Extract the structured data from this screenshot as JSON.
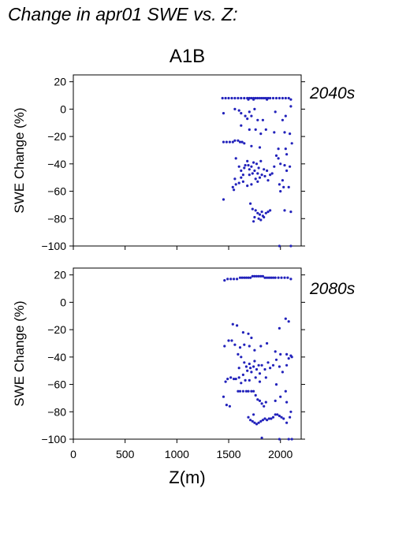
{
  "title": "Change in apr01 SWE vs. Z:",
  "scenario": "A1B",
  "xlabel": "Z(m)",
  "colors": {
    "points": "#2222bb",
    "period_label": "#2222bb",
    "axes": "#000000",
    "background": "#ffffff"
  },
  "chart_data": [
    {
      "type": "scatter",
      "panel_label": "2040s",
      "ylabel": "SWE Change (%)",
      "xlim": [
        0,
        2200
      ],
      "ylim": [
        -100,
        25
      ],
      "xticks": [
        0,
        500,
        1000,
        1500,
        2000
      ],
      "yticks": [
        20,
        0,
        -20,
        -40,
        -60,
        -80,
        -100
      ],
      "show_xtick_labels": false,
      "grid": false,
      "points": [
        [
          1440,
          8
        ],
        [
          1470,
          8
        ],
        [
          1500,
          8
        ],
        [
          1530,
          8
        ],
        [
          1560,
          8
        ],
        [
          1590,
          8
        ],
        [
          1620,
          8
        ],
        [
          1650,
          8
        ],
        [
          1680,
          8
        ],
        [
          1700,
          8
        ],
        [
          1720,
          8
        ],
        [
          1740,
          8
        ],
        [
          1760,
          8
        ],
        [
          1780,
          8
        ],
        [
          1800,
          8
        ],
        [
          1820,
          8
        ],
        [
          1840,
          8
        ],
        [
          1860,
          8
        ],
        [
          1880,
          8
        ],
        [
          1900,
          8
        ],
        [
          1930,
          8
        ],
        [
          1960,
          8
        ],
        [
          1990,
          8
        ],
        [
          2020,
          8
        ],
        [
          2050,
          8
        ],
        [
          2080,
          8
        ],
        [
          2100,
          7
        ],
        [
          1690,
          7
        ],
        [
          1740,
          7
        ],
        [
          1870,
          7
        ],
        [
          1450,
          -3
        ],
        [
          1560,
          0
        ],
        [
          1600,
          -1
        ],
        [
          1620,
          -3
        ],
        [
          1660,
          -5
        ],
        [
          1680,
          -7
        ],
        [
          1700,
          -2
        ],
        [
          1720,
          -5
        ],
        [
          1750,
          0
        ],
        [
          1780,
          -8
        ],
        [
          1830,
          -8
        ],
        [
          1950,
          -2
        ],
        [
          2020,
          -8
        ],
        [
          2050,
          -5
        ],
        [
          2100,
          2
        ],
        [
          1620,
          -12
        ],
        [
          1700,
          -15
        ],
        [
          1760,
          -15
        ],
        [
          1810,
          -18
        ],
        [
          1860,
          -15
        ],
        [
          1940,
          -17
        ],
        [
          2040,
          -17
        ],
        [
          2090,
          -18
        ],
        [
          1450,
          -24
        ],
        [
          1480,
          -24
        ],
        [
          1510,
          -24
        ],
        [
          1540,
          -24
        ],
        [
          1560,
          -23
        ],
        [
          1590,
          -23
        ],
        [
          1610,
          -24
        ],
        [
          1630,
          -24
        ],
        [
          1650,
          -25
        ],
        [
          1720,
          -27
        ],
        [
          1800,
          -28
        ],
        [
          1980,
          -29
        ],
        [
          2050,
          -29
        ],
        [
          2060,
          -33
        ],
        [
          2110,
          -25
        ],
        [
          1570,
          -36
        ],
        [
          1600,
          -42
        ],
        [
          1620,
          -45
        ],
        [
          1640,
          -48
        ],
        [
          1650,
          -43
        ],
        [
          1660,
          -41
        ],
        [
          1680,
          -38
        ],
        [
          1690,
          -41
        ],
        [
          1700,
          -44
        ],
        [
          1720,
          -42
        ],
        [
          1730,
          -47
        ],
        [
          1740,
          -39
        ],
        [
          1750,
          -45
        ],
        [
          1760,
          -51
        ],
        [
          1770,
          -40
        ],
        [
          1780,
          -47
        ],
        [
          1790,
          -43
        ],
        [
          1800,
          -50
        ],
        [
          1810,
          -38
        ],
        [
          1820,
          -48
        ],
        [
          1840,
          -44
        ],
        [
          1850,
          -49
        ],
        [
          1870,
          -45
        ],
        [
          1880,
          -52
        ],
        [
          1900,
          -48
        ],
        [
          1920,
          -47
        ],
        [
          1940,
          -42
        ],
        [
          1960,
          -34
        ],
        [
          1980,
          -36
        ],
        [
          2000,
          -40
        ],
        [
          2020,
          -52
        ],
        [
          2040,
          -41
        ],
        [
          2060,
          -45
        ],
        [
          2090,
          -42
        ],
        [
          1620,
          -50
        ],
        [
          1700,
          -48
        ],
        [
          1560,
          -51
        ],
        [
          1570,
          -55
        ],
        [
          1600,
          -54
        ],
        [
          1640,
          -53
        ],
        [
          1780,
          -53
        ],
        [
          1990,
          -55
        ],
        [
          2030,
          -57
        ],
        [
          2080,
          -57
        ],
        [
          1540,
          -57
        ],
        [
          1550,
          -59
        ],
        [
          1680,
          -56
        ],
        [
          1720,
          -55
        ],
        [
          2000,
          -60
        ],
        [
          1450,
          -66
        ],
        [
          1710,
          -69
        ],
        [
          1730,
          -73
        ],
        [
          1760,
          -74
        ],
        [
          1780,
          -76
        ],
        [
          1800,
          -77
        ],
        [
          1820,
          -75
        ],
        [
          1830,
          -78
        ],
        [
          1840,
          -79
        ],
        [
          1860,
          -76
        ],
        [
          1880,
          -75
        ],
        [
          1900,
          -74
        ],
        [
          1750,
          -79
        ],
        [
          1740,
          -82
        ],
        [
          1790,
          -80
        ],
        [
          1810,
          -81
        ],
        [
          2040,
          -74
        ],
        [
          2100,
          -75
        ],
        [
          1990,
          -100
        ],
        [
          2100,
          -100
        ]
      ]
    },
    {
      "type": "scatter",
      "panel_label": "2080s",
      "ylabel": "SWE Change (%)",
      "xlim": [
        0,
        2200
      ],
      "ylim": [
        -100,
        25
      ],
      "xticks": [
        0,
        500,
        1000,
        1500,
        2000
      ],
      "yticks": [
        20,
        0,
        -20,
        -40,
        -60,
        -80,
        -100
      ],
      "show_xtick_labels": true,
      "grid": false,
      "points": [
        [
          1460,
          16
        ],
        [
          1490,
          17
        ],
        [
          1520,
          17
        ],
        [
          1550,
          17
        ],
        [
          1580,
          17
        ],
        [
          1610,
          18
        ],
        [
          1630,
          18
        ],
        [
          1650,
          18
        ],
        [
          1670,
          18
        ],
        [
          1690,
          18
        ],
        [
          1710,
          18
        ],
        [
          1730,
          19
        ],
        [
          1750,
          19
        ],
        [
          1770,
          19
        ],
        [
          1790,
          19
        ],
        [
          1810,
          19
        ],
        [
          1830,
          19
        ],
        [
          1850,
          18
        ],
        [
          1870,
          18
        ],
        [
          1890,
          18
        ],
        [
          1910,
          18
        ],
        [
          1930,
          18
        ],
        [
          1950,
          18
        ],
        [
          1980,
          18
        ],
        [
          2010,
          18
        ],
        [
          2040,
          18
        ],
        [
          2070,
          18
        ],
        [
          2100,
          17
        ],
        [
          1540,
          -16
        ],
        [
          1580,
          -17
        ],
        [
          1640,
          -22
        ],
        [
          1690,
          -23
        ],
        [
          1720,
          -26
        ],
        [
          1990,
          -19
        ],
        [
          2050,
          -12
        ],
        [
          2080,
          -14
        ],
        [
          1460,
          -32
        ],
        [
          1500,
          -28
        ],
        [
          1530,
          -28
        ],
        [
          1560,
          -31
        ],
        [
          1610,
          -33
        ],
        [
          1650,
          -31
        ],
        [
          1700,
          -32
        ],
        [
          1750,
          -35
        ],
        [
          1810,
          -32
        ],
        [
          1870,
          -30
        ],
        [
          1950,
          -36
        ],
        [
          2000,
          -38
        ],
        [
          2060,
          -38
        ],
        [
          2100,
          -39
        ],
        [
          1590,
          -38
        ],
        [
          1620,
          -40
        ],
        [
          1650,
          -44
        ],
        [
          1670,
          -47
        ],
        [
          1680,
          -50
        ],
        [
          1700,
          -45
        ],
        [
          1710,
          -48
        ],
        [
          1720,
          -51
        ],
        [
          1740,
          -47
        ],
        [
          1750,
          -43
        ],
        [
          1770,
          -49
        ],
        [
          1790,
          -46
        ],
        [
          1800,
          -52
        ],
        [
          1820,
          -46
        ],
        [
          1850,
          -49
        ],
        [
          1880,
          -44
        ],
        [
          1900,
          -48
        ],
        [
          1930,
          -46
        ],
        [
          1960,
          -42
        ],
        [
          1990,
          -47
        ],
        [
          2020,
          -51
        ],
        [
          2060,
          -46
        ],
        [
          2080,
          -41
        ],
        [
          2110,
          -40
        ],
        [
          1600,
          -48
        ],
        [
          1640,
          -53
        ],
        [
          1860,
          -55
        ],
        [
          1470,
          -58
        ],
        [
          1490,
          -56
        ],
        [
          1520,
          -55
        ],
        [
          1550,
          -56
        ],
        [
          1570,
          -56
        ],
        [
          1600,
          -55
        ],
        [
          1620,
          -59
        ],
        [
          1660,
          -57
        ],
        [
          1700,
          -57
        ],
        [
          1760,
          -55
        ],
        [
          1800,
          -58
        ],
        [
          1960,
          -60
        ],
        [
          2050,
          -65
        ],
        [
          1450,
          -69
        ],
        [
          1480,
          -75
        ],
        [
          1510,
          -76
        ],
        [
          1590,
          -65
        ],
        [
          1610,
          -65
        ],
        [
          1640,
          -65
        ],
        [
          1670,
          -65
        ],
        [
          1690,
          -65
        ],
        [
          1720,
          -65
        ],
        [
          1740,
          -65
        ],
        [
          1760,
          -68
        ],
        [
          1780,
          -71
        ],
        [
          1800,
          -72
        ],
        [
          1820,
          -74
        ],
        [
          1840,
          -76
        ],
        [
          1860,
          -73
        ],
        [
          1950,
          -72
        ],
        [
          2000,
          -69
        ],
        [
          2060,
          -73
        ],
        [
          2100,
          -80
        ],
        [
          1690,
          -84
        ],
        [
          1710,
          -86
        ],
        [
          1730,
          -87
        ],
        [
          1750,
          -88
        ],
        [
          1770,
          -89
        ],
        [
          1790,
          -88
        ],
        [
          1810,
          -87
        ],
        [
          1830,
          -86
        ],
        [
          1850,
          -85
        ],
        [
          1870,
          -86
        ],
        [
          1890,
          -85
        ],
        [
          1910,
          -85
        ],
        [
          1930,
          -84
        ],
        [
          1950,
          -82
        ],
        [
          1970,
          -82
        ],
        [
          1990,
          -83
        ],
        [
          2010,
          -84
        ],
        [
          2030,
          -85
        ],
        [
          2060,
          -88
        ],
        [
          2090,
          -84
        ],
        [
          1740,
          -82
        ],
        [
          1820,
          -99
        ],
        [
          1990,
          -100
        ],
        [
          2080,
          -100
        ],
        [
          2110,
          -100
        ]
      ]
    }
  ]
}
